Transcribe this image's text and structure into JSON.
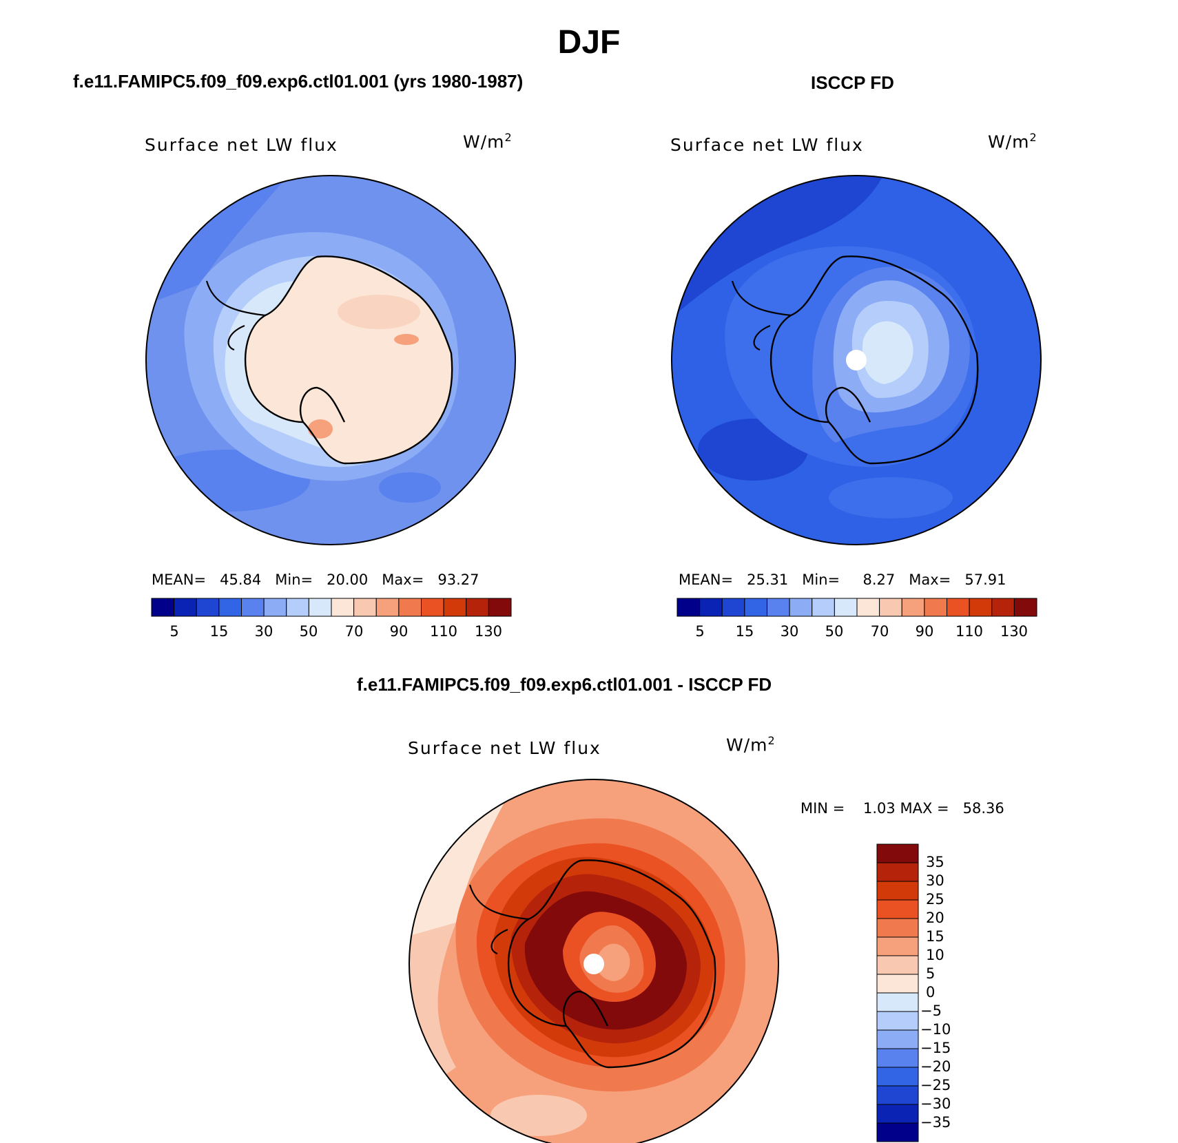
{
  "figure": {
    "season": "DJF",
    "model_title": "f.e11.FAMIPC5.f09_f09.exp6.ctl01.001 (yrs 1980-1987)",
    "obs_title": "ISCCP FD",
    "diff_title": "f.e11.FAMIPC5.f09_f09.exp6.ctl01.001 - ISCCP FD"
  },
  "colors": {
    "abs_scale": [
      "#00008b",
      "#0a23b4",
      "#1e46d2",
      "#3264e6",
      "#5a82ef",
      "#8cacf5",
      "#b4cdfa",
      "#d7e8fb",
      "#fbe6d7",
      "#f9c8b0",
      "#f6a07c",
      "#f07a4e",
      "#ea5223",
      "#d23a0a",
      "#b4230a",
      "#820a0a"
    ],
    "diff_scale": [
      "#00008b",
      "#0a23b4",
      "#1e46d2",
      "#3264e6",
      "#5a82ef",
      "#8cacf5",
      "#b4cdfa",
      "#d7e8fb",
      "#fbe6d7",
      "#f9c8b0",
      "#f6a07c",
      "#f07a4e",
      "#ea5223",
      "#d23a0a",
      "#b4230a",
      "#820a0a"
    ],
    "coastline": "#000000"
  },
  "panels": {
    "model": {
      "label": "Surface net LW flux",
      "units": "W/m",
      "units_exp": "2",
      "mean_label": "MEAN=",
      "mean_value": "45.84",
      "min_label": "Min=",
      "min_value": "20.00",
      "max_label": "Max=",
      "max_value": "93.27",
      "ticks": [
        "5",
        "15",
        "30",
        "50",
        "70",
        "90",
        "110",
        "130"
      ]
    },
    "obs": {
      "label": "Surface net LW flux",
      "units": "W/m",
      "units_exp": "2",
      "mean_label": "MEAN=",
      "mean_value": "25.31",
      "min_label": "Min=",
      "min_value": "8.27",
      "max_label": "Max=",
      "max_value": "57.91",
      "ticks": [
        "5",
        "15",
        "30",
        "50",
        "70",
        "90",
        "110",
        "130"
      ]
    },
    "diff": {
      "label": "Surface net LW flux",
      "units": "W/m",
      "units_exp": "2",
      "min_label": "MIN =",
      "min_value": "1.03",
      "max_label": "MAX =",
      "max_value": "58.36",
      "ticks": [
        "35",
        "30",
        "25",
        "20",
        "15",
        "10",
        "5",
        "0",
        "−5",
        "−10",
        "−15",
        "−20",
        "−25",
        "−30",
        "−35"
      ]
    }
  }
}
